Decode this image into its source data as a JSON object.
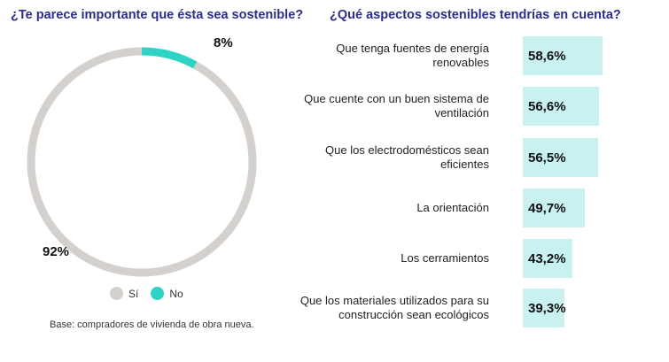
{
  "chart_data": [
    {
      "type": "pie",
      "title": "¿Te parece importante que ésta sea sostenible?",
      "labels": [
        "Sí",
        "No"
      ],
      "values": [
        92,
        8
      ],
      "value_labels": [
        "92%",
        "8%"
      ],
      "colors": [
        "#d3d0ce",
        "#2ed3c6"
      ],
      "legend": "bottom",
      "note": "Base: compradores de vivienda de obra nueva."
    },
    {
      "type": "bar",
      "orientation": "horizontal",
      "title": "¿Qué aspectos sostenibles tendrías en cuenta?",
      "categories": [
        "Que tenga fuentes de energía renovables",
        "Que cuente con un buen sistema de ventilación",
        "Que los electrodomésticos sean eficientes",
        "La orientación",
        "Los cerramientos",
        "Que los materiales utilizados para su construcción sean ecológicos"
      ],
      "values": [
        58.6,
        56.6,
        56.5,
        49.7,
        43.2,
        39.3
      ],
      "value_labels": [
        "58,6%",
        "56,6%",
        "56,5%",
        "49,7%",
        "43,2%",
        "39,3%"
      ],
      "bar_color": "#c8f1f0"
    }
  ]
}
